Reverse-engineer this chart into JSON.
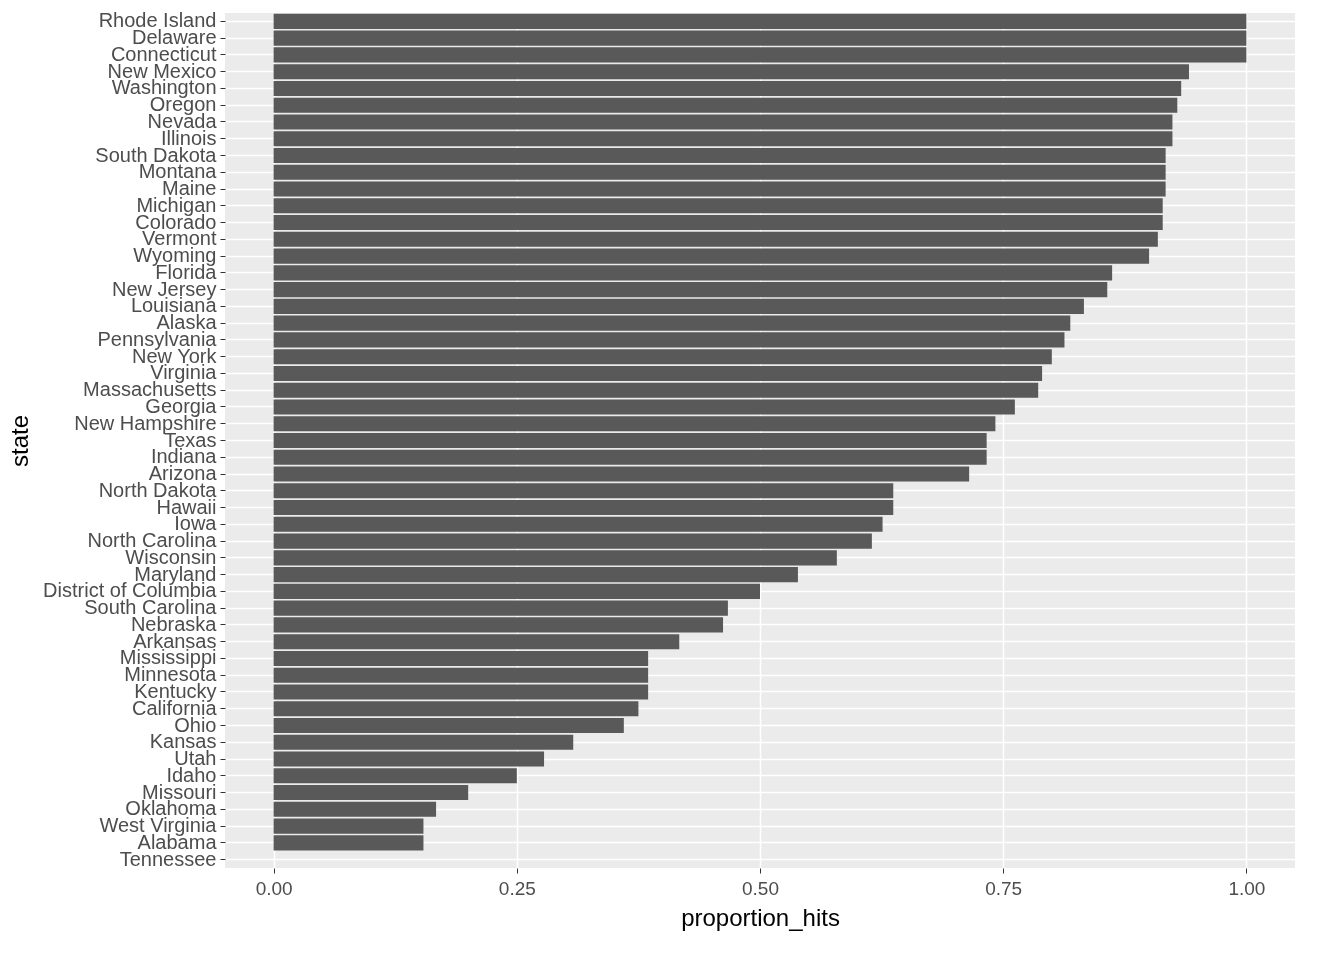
{
  "chart_data": {
    "type": "bar",
    "orientation": "horizontal",
    "xlabel": "proportion_hits",
    "ylabel": "state",
    "color": "#595959",
    "grid": true,
    "categories": [
      "Rhode Island",
      "Delaware",
      "Connecticut",
      "New Mexico",
      "Washington",
      "Oregon",
      "Nevada",
      "Illinois",
      "South Dakota",
      "Montana",
      "Maine",
      "Michigan",
      "Colorado",
      "Vermont",
      "Wyoming",
      "Florida",
      "New Jersey",
      "Louisiana",
      "Alaska",
      "Pennsylvania",
      "New York",
      "Virginia",
      "Massachusetts",
      "Georgia",
      "New Hampshire",
      "Texas",
      "Indiana",
      "Arizona",
      "North Dakota",
      "Hawaii",
      "Iowa",
      "North Carolina",
      "Wisconsin",
      "Maryland",
      "District of Columbia",
      "South Carolina",
      "Nebraska",
      "Arkansas",
      "Mississippi",
      "Minnesota",
      "Kentucky",
      "California",
      "Ohio",
      "Kansas",
      "Utah",
      "Idaho",
      "Missouri",
      "Oklahoma",
      "West Virginia",
      "Alabama",
      "Tennessee"
    ],
    "values": [
      1.0,
      1.0,
      1.0,
      0.941,
      0.933,
      0.929,
      0.924,
      0.924,
      0.917,
      0.917,
      0.917,
      0.914,
      0.914,
      0.909,
      0.9,
      0.862,
      0.857,
      0.833,
      0.819,
      0.813,
      0.8,
      0.79,
      0.786,
      0.762,
      0.742,
      0.733,
      0.733,
      0.715,
      0.637,
      0.637,
      0.626,
      0.615,
      0.579,
      0.539,
      0.5,
      0.467,
      0.462,
      0.417,
      0.385,
      0.385,
      0.385,
      0.375,
      0.36,
      0.308,
      0.278,
      0.25,
      0.2,
      0.167,
      0.154,
      0.154,
      0
    ],
    "xlim": [
      -0.05,
      1.05
    ],
    "xticks": [
      {
        "value": 0,
        "label": "0.00"
      },
      {
        "value": 0.25,
        "label": "0.25"
      },
      {
        "value": 0.5,
        "label": "0.50"
      },
      {
        "value": 0.75,
        "label": "0.75"
      },
      {
        "value": 1,
        "label": "1.00"
      }
    ]
  }
}
